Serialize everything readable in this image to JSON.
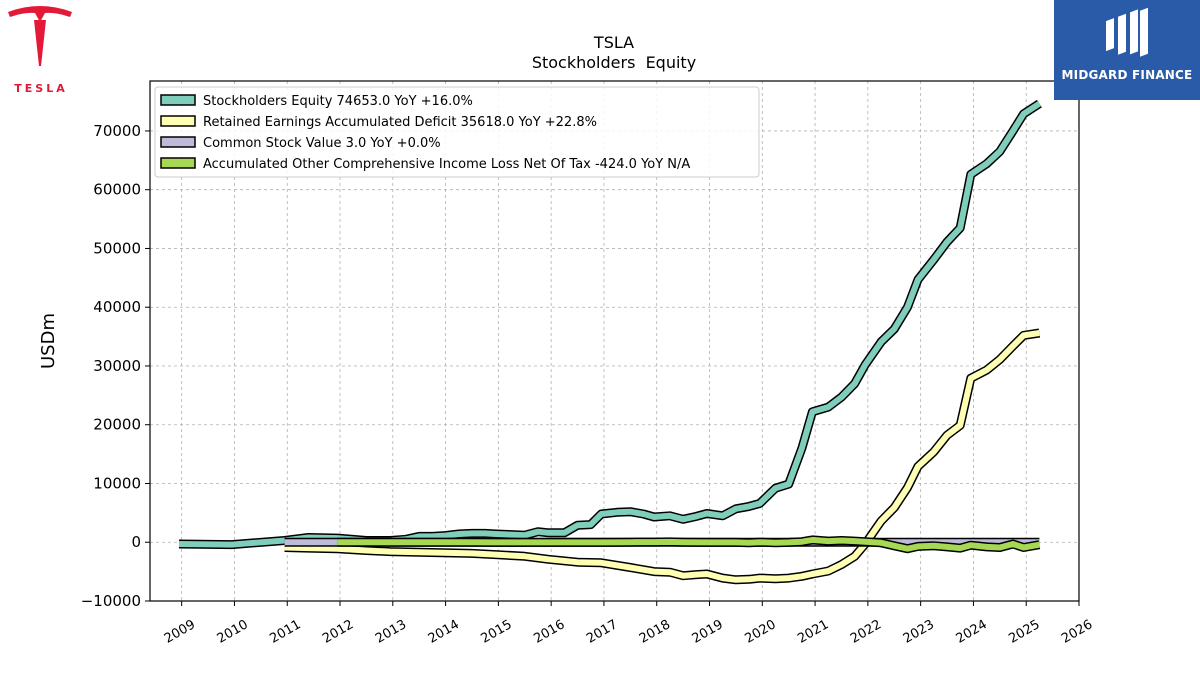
{
  "brand": {
    "left_logo_text": "TESLA",
    "right_logo_text": "MIDGARD FINANCE",
    "tesla_red": "#e31937",
    "midgard_blue": "#2a5ba8"
  },
  "chart_data": {
    "type": "line",
    "title": "TSLA",
    "subtitle": "Stockholders  Equity",
    "xlabel": "",
    "ylabel": "USDm",
    "xlim": [
      2008.4,
      2026.0
    ],
    "ylim": [
      -10000,
      78500
    ],
    "x_ticks": [
      "2009",
      "2010",
      "2011",
      "2012",
      "2013",
      "2014",
      "2015",
      "2016",
      "2017",
      "2018",
      "2019",
      "2020",
      "2021",
      "2022",
      "2023",
      "2024",
      "2025",
      "2026"
    ],
    "y_ticks": [
      -10000,
      0,
      10000,
      20000,
      30000,
      40000,
      50000,
      60000,
      70000
    ],
    "y_tick_labels": [
      "−10000",
      "0",
      "10000",
      "20000",
      "30000",
      "40000",
      "50000",
      "60000",
      "70000"
    ],
    "grid": true,
    "legend_position": "top-left",
    "series": [
      {
        "name": "Stockholders Equity  74653.0 YoY +16.0%",
        "color": "#7fcdbb",
        "points": [
          [
            2008.95,
            -300
          ],
          [
            2009.95,
            -400
          ],
          [
            2010.95,
            300
          ],
          [
            2011.4,
            800
          ],
          [
            2011.95,
            700
          ],
          [
            2012.5,
            300
          ],
          [
            2012.95,
            300
          ],
          [
            2013.25,
            500
          ],
          [
            2013.5,
            1000
          ],
          [
            2013.75,
            1000
          ],
          [
            2013.95,
            1100
          ],
          [
            2014.25,
            1400
          ],
          [
            2014.5,
            1500
          ],
          [
            2014.75,
            1500
          ],
          [
            2014.95,
            1400
          ],
          [
            2015.25,
            1300
          ],
          [
            2015.5,
            1200
          ],
          [
            2015.75,
            1800
          ],
          [
            2015.95,
            1600
          ],
          [
            2016.25,
            1600
          ],
          [
            2016.5,
            2900
          ],
          [
            2016.75,
            3000
          ],
          [
            2016.95,
            4800
          ],
          [
            2017.25,
            5100
          ],
          [
            2017.5,
            5200
          ],
          [
            2017.75,
            4800
          ],
          [
            2017.95,
            4300
          ],
          [
            2018.25,
            4500
          ],
          [
            2018.5,
            3900
          ],
          [
            2018.75,
            4400
          ],
          [
            2018.95,
            4900
          ],
          [
            2019.25,
            4500
          ],
          [
            2019.5,
            5700
          ],
          [
            2019.75,
            6100
          ],
          [
            2019.95,
            6600
          ],
          [
            2020.25,
            9200
          ],
          [
            2020.5,
            9900
          ],
          [
            2020.75,
            16000
          ],
          [
            2020.95,
            22200
          ],
          [
            2021.25,
            23000
          ],
          [
            2021.5,
            24700
          ],
          [
            2021.75,
            27000
          ],
          [
            2021.95,
            30200
          ],
          [
            2022.25,
            34100
          ],
          [
            2022.5,
            36300
          ],
          [
            2022.75,
            40000
          ],
          [
            2022.95,
            44700
          ],
          [
            2023.25,
            48100
          ],
          [
            2023.5,
            51100
          ],
          [
            2023.75,
            53500
          ],
          [
            2023.95,
            62600
          ],
          [
            2024.25,
            64400
          ],
          [
            2024.5,
            66500
          ],
          [
            2024.75,
            70000
          ],
          [
            2024.95,
            72900
          ],
          [
            2025.25,
            74653
          ]
        ]
      },
      {
        "name": "Retained Earnings Accumulated Deficit  35618.0 YoY +22.8%",
        "color": "#ffffb3",
        "points": [
          [
            2010.95,
            -900
          ],
          [
            2011.4,
            -1000
          ],
          [
            2011.95,
            -1100
          ],
          [
            2012.5,
            -1400
          ],
          [
            2012.95,
            -1600
          ],
          [
            2013.5,
            -1700
          ],
          [
            2013.95,
            -1800
          ],
          [
            2014.5,
            -1900
          ],
          [
            2014.95,
            -2100
          ],
          [
            2015.5,
            -2400
          ],
          [
            2015.95,
            -2900
          ],
          [
            2016.5,
            -3400
          ],
          [
            2016.95,
            -3500
          ],
          [
            2017.5,
            -4300
          ],
          [
            2017.95,
            -5000
          ],
          [
            2018.25,
            -5100
          ],
          [
            2018.5,
            -5700
          ],
          [
            2018.75,
            -5500
          ],
          [
            2018.95,
            -5400
          ],
          [
            2019.25,
            -6100
          ],
          [
            2019.5,
            -6400
          ],
          [
            2019.75,
            -6300
          ],
          [
            2019.95,
            -6100
          ],
          [
            2020.25,
            -6200
          ],
          [
            2020.5,
            -6100
          ],
          [
            2020.75,
            -5800
          ],
          [
            2020.95,
            -5400
          ],
          [
            2021.25,
            -4900
          ],
          [
            2021.5,
            -3800
          ],
          [
            2021.75,
            -2400
          ],
          [
            2021.95,
            -300
          ],
          [
            2022.25,
            3600
          ],
          [
            2022.5,
            5900
          ],
          [
            2022.75,
            9300
          ],
          [
            2022.95,
            12900
          ],
          [
            2023.25,
            15400
          ],
          [
            2023.5,
            18200
          ],
          [
            2023.75,
            19900
          ],
          [
            2023.95,
            27900
          ],
          [
            2024.25,
            29300
          ],
          [
            2024.5,
            31100
          ],
          [
            2024.75,
            33400
          ],
          [
            2024.95,
            35200
          ],
          [
            2025.25,
            35618
          ]
        ]
      },
      {
        "name": "Common Stock Value  3.0 YoY +0.0%",
        "color": "#bebada",
        "points": [
          [
            2010.95,
            0
          ],
          [
            2011.4,
            0
          ],
          [
            2011.95,
            0
          ],
          [
            2012.5,
            0
          ],
          [
            2012.95,
            0
          ],
          [
            2013.5,
            0
          ],
          [
            2013.95,
            0
          ],
          [
            2014.5,
            0
          ],
          [
            2014.95,
            0
          ],
          [
            2015.5,
            0
          ],
          [
            2015.95,
            0
          ],
          [
            2016.5,
            0
          ],
          [
            2016.95,
            0
          ],
          [
            2017.5,
            0
          ],
          [
            2017.95,
            0
          ],
          [
            2018.5,
            0
          ],
          [
            2018.95,
            0
          ],
          [
            2019.5,
            0
          ],
          [
            2019.95,
            0
          ],
          [
            2020.5,
            0
          ],
          [
            2020.95,
            0
          ],
          [
            2021.5,
            0
          ],
          [
            2021.95,
            0
          ],
          [
            2022.5,
            0
          ],
          [
            2022.95,
            0
          ],
          [
            2023.5,
            0
          ],
          [
            2023.95,
            0
          ],
          [
            2024.5,
            0
          ],
          [
            2024.95,
            0
          ],
          [
            2025.25,
            3
          ]
        ]
      },
      {
        "name": "Accumulated Other Comprehensive Income Loss Net Of Tax  -424.0 YoY N/A",
        "color": "#a6d854",
        "points": [
          [
            2011.95,
            0
          ],
          [
            2012.5,
            -10
          ],
          [
            2012.95,
            0
          ],
          [
            2013.5,
            -10
          ],
          [
            2013.95,
            10
          ],
          [
            2014.5,
            0
          ],
          [
            2014.95,
            -20
          ],
          [
            2015.5,
            -30
          ],
          [
            2015.95,
            -30
          ],
          [
            2016.5,
            -20
          ],
          [
            2016.95,
            -30
          ],
          [
            2017.5,
            10
          ],
          [
            2017.95,
            30
          ],
          [
            2018.25,
            50
          ],
          [
            2018.5,
            0
          ],
          [
            2018.95,
            -20
          ],
          [
            2019.5,
            -30
          ],
          [
            2019.75,
            -100
          ],
          [
            2019.95,
            0
          ],
          [
            2020.25,
            -100
          ],
          [
            2020.5,
            -20
          ],
          [
            2020.75,
            100
          ],
          [
            2020.95,
            400
          ],
          [
            2021.25,
            200
          ],
          [
            2021.5,
            300
          ],
          [
            2021.75,
            200
          ],
          [
            2021.95,
            100
          ],
          [
            2022.25,
            -100
          ],
          [
            2022.5,
            -600
          ],
          [
            2022.75,
            -1100
          ],
          [
            2022.95,
            -700
          ],
          [
            2023.25,
            -600
          ],
          [
            2023.5,
            -800
          ],
          [
            2023.75,
            -1000
          ],
          [
            2023.95,
            -500
          ],
          [
            2024.25,
            -800
          ],
          [
            2024.5,
            -900
          ],
          [
            2024.75,
            -300
          ],
          [
            2024.95,
            -900
          ],
          [
            2025.25,
            -424
          ]
        ]
      }
    ]
  }
}
